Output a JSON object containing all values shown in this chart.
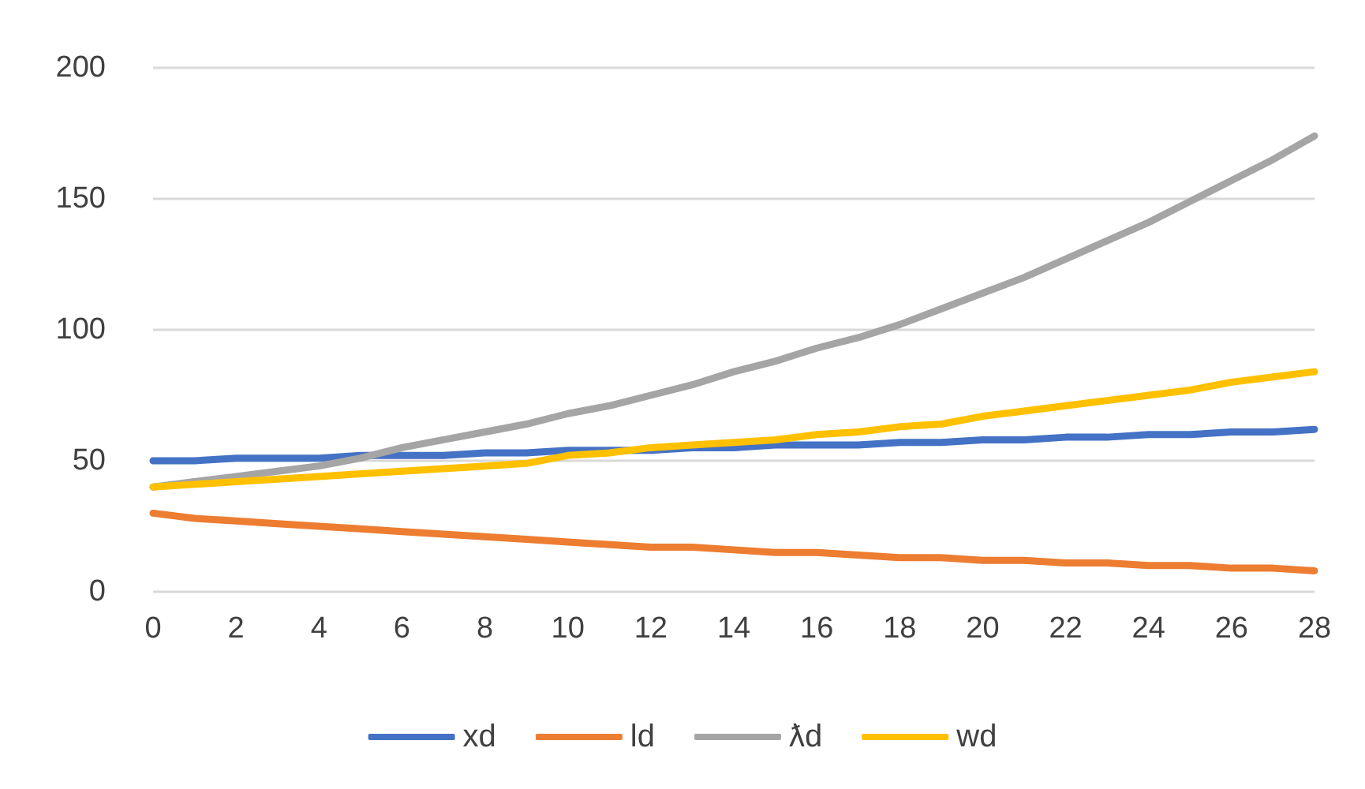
{
  "chart_data": {
    "type": "line",
    "x": [
      0,
      1,
      2,
      3,
      4,
      5,
      6,
      7,
      8,
      9,
      10,
      11,
      12,
      13,
      14,
      15,
      16,
      17,
      18,
      19,
      20,
      21,
      22,
      23,
      24,
      25,
      26,
      27,
      28
    ],
    "series": [
      {
        "name": "xd",
        "color": "#4472c4",
        "values": [
          50,
          50,
          51,
          51,
          51,
          52,
          52,
          52,
          53,
          53,
          54,
          54,
          54,
          55,
          55,
          56,
          56,
          56,
          57,
          57,
          58,
          58,
          59,
          59,
          60,
          60,
          61,
          61,
          62
        ]
      },
      {
        "name": "ld",
        "color": "#ed7d31",
        "values": [
          30,
          28,
          27,
          26,
          25,
          24,
          23,
          22,
          21,
          20,
          19,
          18,
          17,
          17,
          16,
          15,
          15,
          14,
          13,
          13,
          12,
          12,
          11,
          11,
          10,
          10,
          9,
          9,
          8
        ]
      },
      {
        "name": "ƛd",
        "color": "#a5a5a5",
        "values": [
          40,
          42,
          44,
          46,
          48,
          51,
          55,
          58,
          61,
          64,
          68,
          71,
          75,
          79,
          84,
          88,
          93,
          97,
          102,
          108,
          114,
          120,
          127,
          134,
          141,
          149,
          157,
          165,
          174
        ]
      },
      {
        "name": "wd",
        "color": "#ffc000",
        "values": [
          40,
          41,
          42,
          43,
          44,
          45,
          46,
          47,
          48,
          49,
          52,
          53,
          55,
          56,
          57,
          58,
          60,
          61,
          63,
          64,
          67,
          69,
          71,
          73,
          75,
          77,
          80,
          82,
          84
        ]
      }
    ],
    "xlim": [
      0,
      28
    ],
    "xticks": [
      0,
      2,
      4,
      6,
      8,
      10,
      12,
      14,
      16,
      18,
      20,
      22,
      24,
      26,
      28
    ],
    "ylim": [
      0,
      200
    ],
    "yticks": [
      0,
      50,
      100,
      150,
      200
    ],
    "grid": "y",
    "legend": "bottom",
    "marker": "none",
    "line_style": "solid"
  }
}
